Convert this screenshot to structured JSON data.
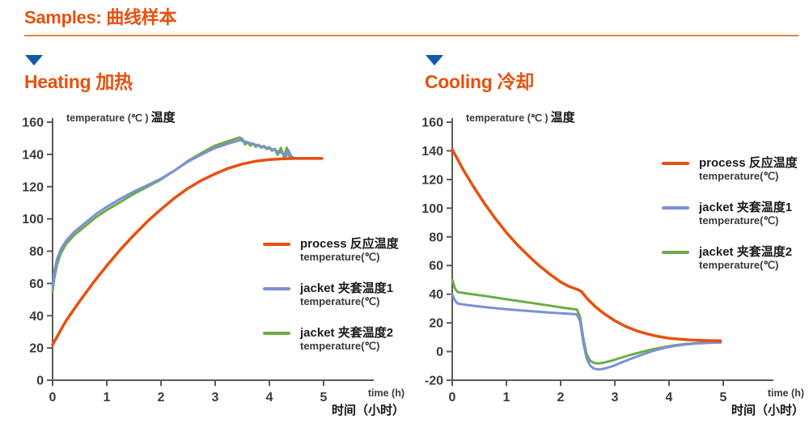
{
  "header": {
    "title": "Samples: 曲线样本"
  },
  "colors": {
    "accent_orange": "#E8500C",
    "divider_orange": "#E8813B",
    "triangle_blue": "#1558A8",
    "axis_gray": "#5A5A5A",
    "tick_text": "#3C3C3C"
  },
  "chart_data": [
    {
      "type": "line",
      "id": "heating",
      "heading": "Heating 加热",
      "y_axis_title_en": "temperature (℃ )",
      "y_axis_title_zh": "温度",
      "x_axis_title_en": "time (h)",
      "x_axis_title_zh": "时间（小时）",
      "xlim": [
        0,
        5.9
      ],
      "ylim": [
        0,
        160
      ],
      "x_ticks": [
        0,
        1,
        2,
        3,
        4,
        5
      ],
      "y_ticks": [
        0,
        20,
        40,
        60,
        80,
        100,
        120,
        140,
        160
      ],
      "grid": false,
      "legend_position": "right-middle",
      "legend": [
        {
          "label": "process 反应温度",
          "sublabel": "temperature(℃)",
          "color": "#E8500F"
        },
        {
          "label": "jacket 夹套温度1",
          "sublabel": "temperature(℃)",
          "color": "#7C8FD9"
        },
        {
          "label": "jacket 夹套温度2",
          "sublabel": "temperature(℃)",
          "color": "#6BAD45"
        }
      ],
      "series": [
        {
          "id": "process",
          "name": "process 反应温度 temperature(℃)",
          "color": "#E8500F",
          "width": 3.5,
          "points": [
            [
              0,
              22
            ],
            [
              0.25,
              37
            ],
            [
              0.5,
              49
            ],
            [
              0.75,
              60.5
            ],
            [
              1,
              71
            ],
            [
              1.25,
              81
            ],
            [
              1.5,
              90
            ],
            [
              1.75,
              98.5
            ],
            [
              2,
              106
            ],
            [
              2.25,
              113
            ],
            [
              2.5,
              119
            ],
            [
              2.75,
              124
            ],
            [
              3,
              128
            ],
            [
              3.25,
              131.5
            ],
            [
              3.5,
              134
            ],
            [
              3.75,
              135.8
            ],
            [
              4,
              136.8
            ],
            [
              4.25,
              137.3
            ],
            [
              4.5,
              137.5
            ],
            [
              4.75,
              137.5
            ],
            [
              4.97,
              137.5
            ]
          ]
        },
        {
          "id": "jacket1",
          "name": "jacket 夹套温度1 temperature(℃)",
          "color": "#7C8FD9",
          "width": 3,
          "points": [
            [
              0,
              58
            ],
            [
              0.03,
              67
            ],
            [
              0.08,
              75
            ],
            [
              0.15,
              81
            ],
            [
              0.25,
              86.5
            ],
            [
              0.4,
              92
            ],
            [
              0.6,
              97.5
            ],
            [
              0.8,
              103
            ],
            [
              1,
              107.5
            ],
            [
              1.25,
              112.5
            ],
            [
              1.5,
              117
            ],
            [
              1.75,
              121
            ],
            [
              2,
              125
            ],
            [
              2.25,
              130
            ],
            [
              2.5,
              135.5
            ],
            [
              2.75,
              140
            ],
            [
              3,
              144
            ],
            [
              3.25,
              146.8
            ],
            [
              3.45,
              148.8
            ],
            [
              3.55,
              148
            ],
            [
              3.7,
              146.4
            ],
            [
              3.85,
              145
            ],
            [
              4,
              143.7
            ],
            [
              4.1,
              142.7
            ],
            [
              4.2,
              141.3
            ],
            [
              4.27,
              140
            ],
            [
              4.31,
              139
            ],
            [
              4.35,
              142.6
            ],
            [
              4.4,
              139
            ],
            [
              4.45,
              137.8
            ],
            [
              4.6,
              137.6
            ],
            [
              4.97,
              137.6
            ]
          ]
        },
        {
          "id": "jacket2",
          "name": "jacket 夹套温度2 temperature(℃)",
          "color": "#6BAD45",
          "width": 3,
          "points": [
            [
              0,
              55
            ],
            [
              0.03,
              63
            ],
            [
              0.08,
              71.5
            ],
            [
              0.15,
              78.5
            ],
            [
              0.25,
              84.5
            ],
            [
              0.4,
              90
            ],
            [
              0.6,
              95.5
            ],
            [
              0.8,
              101
            ],
            [
              1,
              105.5
            ],
            [
              1.25,
              110.5
            ],
            [
              1.5,
              115.5
            ],
            [
              1.75,
              120
            ],
            [
              2,
              124.5
            ],
            [
              2.25,
              130
            ],
            [
              2.5,
              136
            ],
            [
              2.75,
              141
            ],
            [
              3,
              145.5
            ],
            [
              3.25,
              148.3
            ],
            [
              3.45,
              150.5
            ],
            [
              3.5,
              149.6
            ],
            [
              3.55,
              146.2
            ],
            [
              3.6,
              147.5
            ],
            [
              3.65,
              145.5
            ],
            [
              3.7,
              146.7
            ],
            [
              3.75,
              144.7
            ],
            [
              3.8,
              146
            ],
            [
              3.85,
              144.1
            ],
            [
              3.9,
              145.3
            ],
            [
              3.95,
              143.3
            ],
            [
              4,
              144.5
            ],
            [
              4.05,
              142.3
            ],
            [
              4.1,
              143.5
            ],
            [
              4.15,
              139.7
            ],
            [
              4.21,
              144
            ],
            [
              4.27,
              138.3
            ],
            [
              4.32,
              144.2
            ],
            [
              4.38,
              137.8
            ],
            [
              4.45,
              137.7
            ],
            [
              4.7,
              137.7
            ],
            [
              4.97,
              137.7
            ]
          ]
        }
      ]
    },
    {
      "type": "line",
      "id": "cooling",
      "heading": "Cooling 冷却",
      "y_axis_title_en": "temperature (℃ )",
      "y_axis_title_zh": "温度",
      "x_axis_title_en": "time (h)",
      "x_axis_title_zh": "时间（小时）",
      "xlim": [
        0,
        5.9
      ],
      "ylim": [
        -20,
        160
      ],
      "x_ticks": [
        0,
        1,
        2,
        3,
        4,
        5
      ],
      "y_ticks": [
        -20,
        0,
        20,
        40,
        60,
        80,
        100,
        120,
        140,
        160
      ],
      "grid": false,
      "legend_position": "right-top",
      "legend": [
        {
          "label": "process 反应温度",
          "sublabel": "temperature(℃)",
          "color": "#E8500F"
        },
        {
          "label": "jacket 夹套温度1",
          "sublabel": "temperature(℃)",
          "color": "#7C8FD9"
        },
        {
          "label": "jacket 夹套温度2",
          "sublabel": "temperature(℃)",
          "color": "#6BAD45"
        }
      ],
      "series": [
        {
          "id": "process",
          "name": "process 反应温度 temperature(℃)",
          "color": "#E8500F",
          "width": 3.5,
          "points": [
            [
              0,
              141
            ],
            [
              0.2,
              127
            ],
            [
              0.4,
              114.5
            ],
            [
              0.6,
              103
            ],
            [
              0.8,
              92.5
            ],
            [
              1,
              83
            ],
            [
              1.2,
              74.5
            ],
            [
              1.4,
              67
            ],
            [
              1.6,
              60
            ],
            [
              1.8,
              54
            ],
            [
              2,
              48.5
            ],
            [
              2.15,
              45.5
            ],
            [
              2.3,
              43.5
            ],
            [
              2.38,
              42
            ],
            [
              2.5,
              36.5
            ],
            [
              2.65,
              31
            ],
            [
              2.8,
              26.5
            ],
            [
              3,
              21.5
            ],
            [
              3.2,
              17.5
            ],
            [
              3.4,
              14.5
            ],
            [
              3.6,
              12.3
            ],
            [
              3.8,
              10.5
            ],
            [
              4,
              9.3
            ],
            [
              4.2,
              8.6
            ],
            [
              4.4,
              8.1
            ],
            [
              4.6,
              7.8
            ],
            [
              4.8,
              7.6
            ],
            [
              4.95,
              7.5
            ]
          ]
        },
        {
          "id": "jacket1",
          "name": "jacket 夹套温度1 temperature(℃)",
          "color": "#7C8FD9",
          "width": 3,
          "points": [
            [
              0,
              40
            ],
            [
              0.05,
              35.5
            ],
            [
              0.1,
              33.5
            ],
            [
              0.3,
              32.3
            ],
            [
              0.6,
              31
            ],
            [
              1,
              29.5
            ],
            [
              1.4,
              28.3
            ],
            [
              1.8,
              27.2
            ],
            [
              2.1,
              26.5
            ],
            [
              2.3,
              26
            ],
            [
              2.36,
              21
            ],
            [
              2.42,
              6
            ],
            [
              2.48,
              -5
            ],
            [
              2.55,
              -10
            ],
            [
              2.62,
              -12
            ],
            [
              2.7,
              -12.5
            ],
            [
              2.8,
              -12
            ],
            [
              2.95,
              -10.3
            ],
            [
              3.1,
              -8
            ],
            [
              3.3,
              -5
            ],
            [
              3.5,
              -2.2
            ],
            [
              3.7,
              0.4
            ],
            [
              3.9,
              2.4
            ],
            [
              4.1,
              3.9
            ],
            [
              4.3,
              4.9
            ],
            [
              4.5,
              5.6
            ],
            [
              4.7,
              6
            ],
            [
              4.95,
              6.3
            ]
          ]
        },
        {
          "id": "jacket2",
          "name": "jacket 夹套温度2 temperature(℃)",
          "color": "#6BAD45",
          "width": 3,
          "points": [
            [
              0,
              50
            ],
            [
              0.05,
              44
            ],
            [
              0.1,
              41.5
            ],
            [
              0.3,
              40.3
            ],
            [
              0.6,
              38.8
            ],
            [
              1,
              36.5
            ],
            [
              1.4,
              34.3
            ],
            [
              1.8,
              32
            ],
            [
              2.1,
              30.3
            ],
            [
              2.3,
              29.3
            ],
            [
              2.36,
              24
            ],
            [
              2.42,
              9
            ],
            [
              2.48,
              -2
            ],
            [
              2.55,
              -6.5
            ],
            [
              2.62,
              -8
            ],
            [
              2.7,
              -8.3
            ],
            [
              2.8,
              -7.7
            ],
            [
              2.95,
              -6.3
            ],
            [
              3.1,
              -4.5
            ],
            [
              3.3,
              -2.2
            ],
            [
              3.5,
              -0.2
            ],
            [
              3.7,
              1.6
            ],
            [
              3.9,
              3.1
            ],
            [
              4.1,
              4.3
            ],
            [
              4.3,
              5.2
            ],
            [
              4.5,
              5.8
            ],
            [
              4.7,
              6.2
            ],
            [
              4.95,
              6.5
            ]
          ]
        }
      ]
    }
  ]
}
